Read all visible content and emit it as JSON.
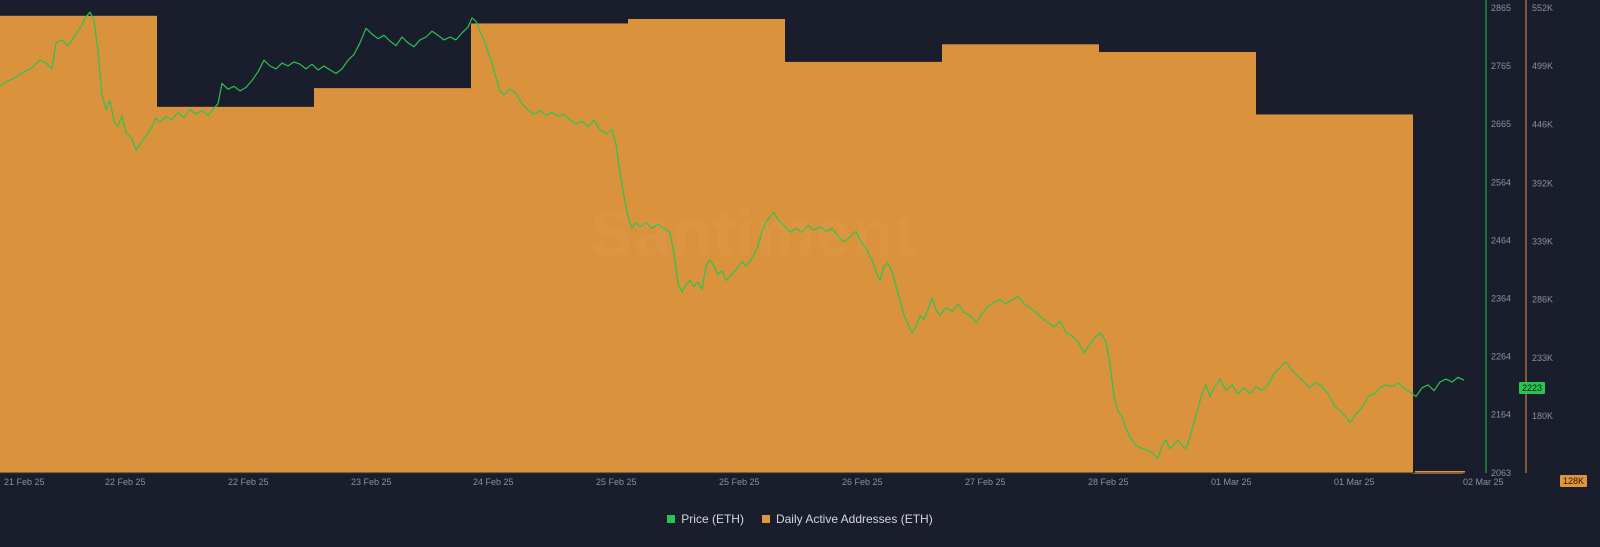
{
  "chart_data": {
    "type": "bar",
    "x_ticks": [
      "21 Feb 25",
      "22 Feb 25",
      "22 Feb 25",
      "23 Feb 25",
      "24 Feb 25",
      "25 Feb 25",
      "25 Feb 25",
      "26 Feb 25",
      "27 Feb 25",
      "28 Feb 25",
      "01 Mar 25",
      "01 Mar 25",
      "02 Mar 25"
    ],
    "y_right_price_ticks": [
      "2865",
      "2765",
      "2665",
      "2564",
      "2464",
      "2364",
      "2264",
      "2164",
      "2063"
    ],
    "y_right_addr_ticks": [
      "552K",
      "499K",
      "446K",
      "392K",
      "339K",
      "286K",
      "233K",
      "180K"
    ],
    "price_range": [
      2063,
      2865
    ],
    "addr_range": [
      128000,
      552000
    ],
    "current_price_label": "2223",
    "current_addr_label": "128K",
    "watermark": "Santiment",
    "series": [
      {
        "name": "Daily Active Addresses (ETH)",
        "color": "#e0963f",
        "type": "bar",
        "days": [
          "21 Feb 25",
          "22 Feb 25",
          "23 Feb 25",
          "24 Feb 25",
          "25 Feb 25",
          "26 Feb 25",
          "27 Feb 25",
          "28 Feb 25",
          "01 Mar 25",
          "02 Mar 25"
        ],
        "values": [
          545000,
          462000,
          479000,
          538000,
          542000,
          503000,
          519000,
          512000,
          455000,
          128000
        ]
      },
      {
        "name": "Price (ETH)",
        "color": "#27c552",
        "type": "line",
        "points": [
          [
            0,
            2730
          ],
          [
            6,
            2738
          ],
          [
            12,
            2742
          ],
          [
            18,
            2748
          ],
          [
            24,
            2755
          ],
          [
            32,
            2762
          ],
          [
            40,
            2775
          ],
          [
            46,
            2770
          ],
          [
            52,
            2760
          ],
          [
            56,
            2805
          ],
          [
            62,
            2810
          ],
          [
            68,
            2800
          ],
          [
            74,
            2815
          ],
          [
            80,
            2830
          ],
          [
            86,
            2850
          ],
          [
            90,
            2858
          ],
          [
            94,
            2845
          ],
          [
            98,
            2790
          ],
          [
            102,
            2715
          ],
          [
            106,
            2690
          ],
          [
            110,
            2705
          ],
          [
            114,
            2670
          ],
          [
            118,
            2660
          ],
          [
            122,
            2680
          ],
          [
            126,
            2650
          ],
          [
            132,
            2640
          ],
          [
            136,
            2620
          ],
          [
            140,
            2630
          ],
          [
            146,
            2645
          ],
          [
            152,
            2660
          ],
          [
            156,
            2675
          ],
          [
            160,
            2668
          ],
          [
            166,
            2678
          ],
          [
            172,
            2672
          ],
          [
            178,
            2685
          ],
          [
            184,
            2676
          ],
          [
            190,
            2690
          ],
          [
            196,
            2682
          ],
          [
            202,
            2688
          ],
          [
            208,
            2680
          ],
          [
            214,
            2692
          ],
          [
            218,
            2700
          ],
          [
            222,
            2735
          ],
          [
            228,
            2725
          ],
          [
            234,
            2730
          ],
          [
            240,
            2722
          ],
          [
            246,
            2728
          ],
          [
            252,
            2740
          ],
          [
            258,
            2755
          ],
          [
            264,
            2775
          ],
          [
            270,
            2765
          ],
          [
            276,
            2760
          ],
          [
            282,
            2770
          ],
          [
            288,
            2765
          ],
          [
            294,
            2772
          ],
          [
            300,
            2768
          ],
          [
            306,
            2760
          ],
          [
            312,
            2768
          ],
          [
            318,
            2758
          ],
          [
            324,
            2765
          ],
          [
            330,
            2758
          ],
          [
            336,
            2752
          ],
          [
            342,
            2760
          ],
          [
            348,
            2775
          ],
          [
            354,
            2785
          ],
          [
            360,
            2805
          ],
          [
            366,
            2830
          ],
          [
            372,
            2820
          ],
          [
            378,
            2812
          ],
          [
            384,
            2818
          ],
          [
            390,
            2808
          ],
          [
            396,
            2800
          ],
          [
            402,
            2815
          ],
          [
            408,
            2805
          ],
          [
            414,
            2798
          ],
          [
            420,
            2810
          ],
          [
            426,
            2815
          ],
          [
            432,
            2825
          ],
          [
            438,
            2818
          ],
          [
            444,
            2810
          ],
          [
            450,
            2815
          ],
          [
            456,
            2810
          ],
          [
            462,
            2822
          ],
          [
            468,
            2832
          ],
          [
            472,
            2848
          ],
          [
            476,
            2842
          ],
          [
            480,
            2825
          ],
          [
            484,
            2810
          ],
          [
            488,
            2790
          ],
          [
            492,
            2770
          ],
          [
            496,
            2745
          ],
          [
            500,
            2722
          ],
          [
            504,
            2715
          ],
          [
            510,
            2725
          ],
          [
            516,
            2718
          ],
          [
            522,
            2700
          ],
          [
            528,
            2690
          ],
          [
            534,
            2682
          ],
          [
            540,
            2688
          ],
          [
            546,
            2680
          ],
          [
            552,
            2685
          ],
          [
            558,
            2678
          ],
          [
            564,
            2682
          ],
          [
            570,
            2672
          ],
          [
            576,
            2665
          ],
          [
            582,
            2670
          ],
          [
            588,
            2660
          ],
          [
            594,
            2672
          ],
          [
            600,
            2655
          ],
          [
            606,
            2648
          ],
          [
            612,
            2655
          ],
          [
            616,
            2630
          ],
          [
            620,
            2580
          ],
          [
            624,
            2540
          ],
          [
            628,
            2505
          ],
          [
            632,
            2485
          ],
          [
            636,
            2495
          ],
          [
            640,
            2488
          ],
          [
            646,
            2495
          ],
          [
            652,
            2485
          ],
          [
            658,
            2492
          ],
          [
            664,
            2485
          ],
          [
            670,
            2478
          ],
          [
            674,
            2440
          ],
          [
            678,
            2390
          ],
          [
            682,
            2375
          ],
          [
            686,
            2388
          ],
          [
            690,
            2395
          ],
          [
            694,
            2385
          ],
          [
            698,
            2392
          ],
          [
            702,
            2380
          ],
          [
            706,
            2420
          ],
          [
            710,
            2430
          ],
          [
            714,
            2420
          ],
          [
            718,
            2405
          ],
          [
            722,
            2412
          ],
          [
            726,
            2395
          ],
          [
            730,
            2402
          ],
          [
            734,
            2410
          ],
          [
            738,
            2418
          ],
          [
            742,
            2428
          ],
          [
            746,
            2420
          ],
          [
            750,
            2428
          ],
          [
            754,
            2440
          ],
          [
            758,
            2455
          ],
          [
            762,
            2480
          ],
          [
            766,
            2495
          ],
          [
            770,
            2505
          ],
          [
            774,
            2512
          ],
          [
            778,
            2500
          ],
          [
            784,
            2490
          ],
          [
            790,
            2478
          ],
          [
            796,
            2485
          ],
          [
            802,
            2478
          ],
          [
            808,
            2490
          ],
          [
            814,
            2482
          ],
          [
            820,
            2488
          ],
          [
            826,
            2480
          ],
          [
            832,
            2485
          ],
          [
            838,
            2472
          ],
          [
            844,
            2462
          ],
          [
            850,
            2470
          ],
          [
            856,
            2480
          ],
          [
            860,
            2465
          ],
          [
            866,
            2450
          ],
          [
            872,
            2430
          ],
          [
            876,
            2410
          ],
          [
            880,
            2395
          ],
          [
            884,
            2420
          ],
          [
            888,
            2425
          ],
          [
            892,
            2410
          ],
          [
            896,
            2385
          ],
          [
            900,
            2360
          ],
          [
            904,
            2335
          ],
          [
            908,
            2320
          ],
          [
            912,
            2305
          ],
          [
            916,
            2315
          ],
          [
            920,
            2335
          ],
          [
            924,
            2328
          ],
          [
            928,
            2345
          ],
          [
            932,
            2365
          ],
          [
            936,
            2345
          ],
          [
            940,
            2335
          ],
          [
            946,
            2348
          ],
          [
            952,
            2342
          ],
          [
            958,
            2355
          ],
          [
            964,
            2340
          ],
          [
            970,
            2335
          ],
          [
            976,
            2322
          ],
          [
            982,
            2338
          ],
          [
            988,
            2350
          ],
          [
            994,
            2358
          ],
          [
            1000,
            2362
          ],
          [
            1006,
            2355
          ],
          [
            1012,
            2362
          ],
          [
            1018,
            2368
          ],
          [
            1024,
            2355
          ],
          [
            1030,
            2348
          ],
          [
            1036,
            2340
          ],
          [
            1042,
            2330
          ],
          [
            1048,
            2322
          ],
          [
            1054,
            2315
          ],
          [
            1060,
            2325
          ],
          [
            1066,
            2305
          ],
          [
            1072,
            2300
          ],
          [
            1078,
            2290
          ],
          [
            1084,
            2270
          ],
          [
            1088,
            2280
          ],
          [
            1094,
            2295
          ],
          [
            1100,
            2305
          ],
          [
            1106,
            2290
          ],
          [
            1110,
            2250
          ],
          [
            1114,
            2195
          ],
          [
            1118,
            2170
          ],
          [
            1122,
            2160
          ],
          [
            1126,
            2140
          ],
          [
            1130,
            2125
          ],
          [
            1136,
            2110
          ],
          [
            1142,
            2105
          ],
          [
            1148,
            2102
          ],
          [
            1154,
            2095
          ],
          [
            1158,
            2088
          ],
          [
            1162,
            2110
          ],
          [
            1166,
            2120
          ],
          [
            1170,
            2105
          ],
          [
            1174,
            2112
          ],
          [
            1178,
            2120
          ],
          [
            1182,
            2110
          ],
          [
            1186,
            2105
          ],
          [
            1190,
            2125
          ],
          [
            1194,
            2150
          ],
          [
            1198,
            2175
          ],
          [
            1202,
            2200
          ],
          [
            1206,
            2215
          ],
          [
            1210,
            2195
          ],
          [
            1214,
            2210
          ],
          [
            1220,
            2225
          ],
          [
            1226,
            2205
          ],
          [
            1232,
            2215
          ],
          [
            1238,
            2200
          ],
          [
            1244,
            2210
          ],
          [
            1250,
            2200
          ],
          [
            1256,
            2212
          ],
          [
            1262,
            2205
          ],
          [
            1268,
            2215
          ],
          [
            1274,
            2235
          ],
          [
            1280,
            2245
          ],
          [
            1286,
            2255
          ],
          [
            1292,
            2240
          ],
          [
            1298,
            2230
          ],
          [
            1304,
            2220
          ],
          [
            1310,
            2210
          ],
          [
            1316,
            2220
          ],
          [
            1322,
            2212
          ],
          [
            1328,
            2200
          ],
          [
            1334,
            2180
          ],
          [
            1340,
            2170
          ],
          [
            1346,
            2160
          ],
          [
            1350,
            2150
          ],
          [
            1356,
            2165
          ],
          [
            1362,
            2175
          ],
          [
            1368,
            2195
          ],
          [
            1374,
            2200
          ],
          [
            1380,
            2210
          ],
          [
            1386,
            2215
          ],
          [
            1392,
            2212
          ],
          [
            1398,
            2218
          ],
          [
            1404,
            2210
          ],
          [
            1410,
            2202
          ],
          [
            1416,
            2195
          ],
          [
            1422,
            2210
          ],
          [
            1428,
            2215
          ],
          [
            1434,
            2205
          ],
          [
            1440,
            2220
          ],
          [
            1446,
            2225
          ],
          [
            1452,
            2220
          ],
          [
            1458,
            2228
          ],
          [
            1464,
            2223
          ]
        ]
      }
    ]
  }
}
